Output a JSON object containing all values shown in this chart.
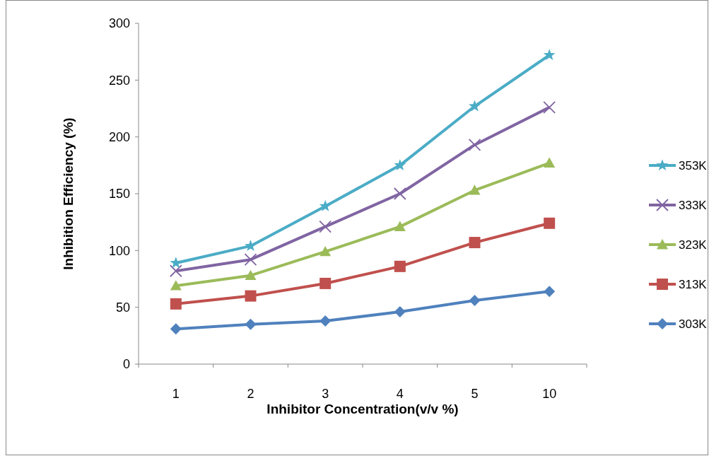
{
  "chart_data": {
    "type": "line",
    "xlabel": "Inhibitor Concentration(v/v %)",
    "ylabel": "Inhibition Efficiency (%)",
    "categories": [
      "1",
      "2",
      "3",
      "4",
      "5",
      "10"
    ],
    "ylim": [
      0,
      300
    ],
    "yticks": [
      0,
      50,
      100,
      150,
      200,
      250,
      300
    ],
    "grid": false,
    "legend": "right",
    "line_style": "solid",
    "series": [
      {
        "name": "353K",
        "color": "#4bacc6",
        "marker": "star",
        "values": [
          89,
          104,
          139,
          175,
          227,
          272
        ]
      },
      {
        "name": "333K",
        "color": "#8064a2",
        "marker": "cross",
        "values": [
          82,
          92,
          121,
          150,
          193,
          226
        ]
      },
      {
        "name": "323K",
        "color": "#9bbb59",
        "marker": "triangle",
        "values": [
          69,
          78,
          99,
          121,
          153,
          177
        ]
      },
      {
        "name": "313K",
        "color": "#c0504d",
        "marker": "square",
        "values": [
          53,
          60,
          71,
          86,
          107,
          124
        ]
      },
      {
        "name": "303K",
        "color": "#4f81bd",
        "marker": "diamond",
        "values": [
          31,
          35,
          38,
          46,
          56,
          64
        ]
      }
    ]
  }
}
